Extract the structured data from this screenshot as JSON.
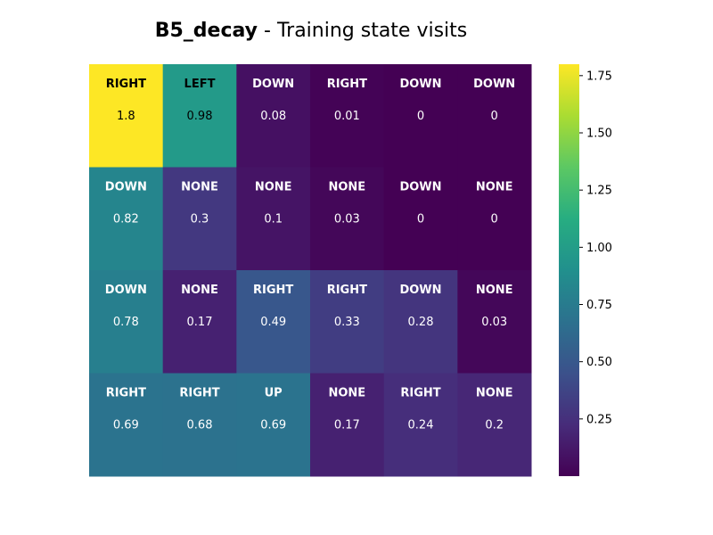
{
  "chart_data": {
    "type": "heatmap",
    "title_bold": "B5_decay",
    "title_rest": " - Training state visits",
    "rows": 4,
    "cols": 6,
    "values": [
      [
        1.8,
        0.98,
        0.08,
        0.01,
        0,
        0
      ],
      [
        0.82,
        0.3,
        0.1,
        0.03,
        0,
        0
      ],
      [
        0.78,
        0.17,
        0.49,
        0.33,
        0.28,
        0.03
      ],
      [
        0.69,
        0.68,
        0.69,
        0.17,
        0.24,
        0.2
      ]
    ],
    "actions": [
      [
        "RIGHT",
        "LEFT",
        "DOWN",
        "RIGHT",
        "DOWN",
        "DOWN"
      ],
      [
        "DOWN",
        "NONE",
        "NONE",
        "NONE",
        "DOWN",
        "NONE"
      ],
      [
        "DOWN",
        "NONE",
        "RIGHT",
        "RIGHT",
        "DOWN",
        "NONE"
      ],
      [
        "RIGHT",
        "RIGHT",
        "UP",
        "NONE",
        "RIGHT",
        "NONE"
      ]
    ],
    "colormap": "viridis",
    "vmin": 0,
    "vmax": 1.8,
    "colorbar_ticks": [
      0.25,
      0.5,
      0.75,
      1.0,
      1.25,
      1.5,
      1.75
    ],
    "colorbar_tick_labels": [
      "0.25",
      "0.50",
      "0.75",
      "1.00",
      "1.25",
      "1.50",
      "1.75"
    ]
  }
}
